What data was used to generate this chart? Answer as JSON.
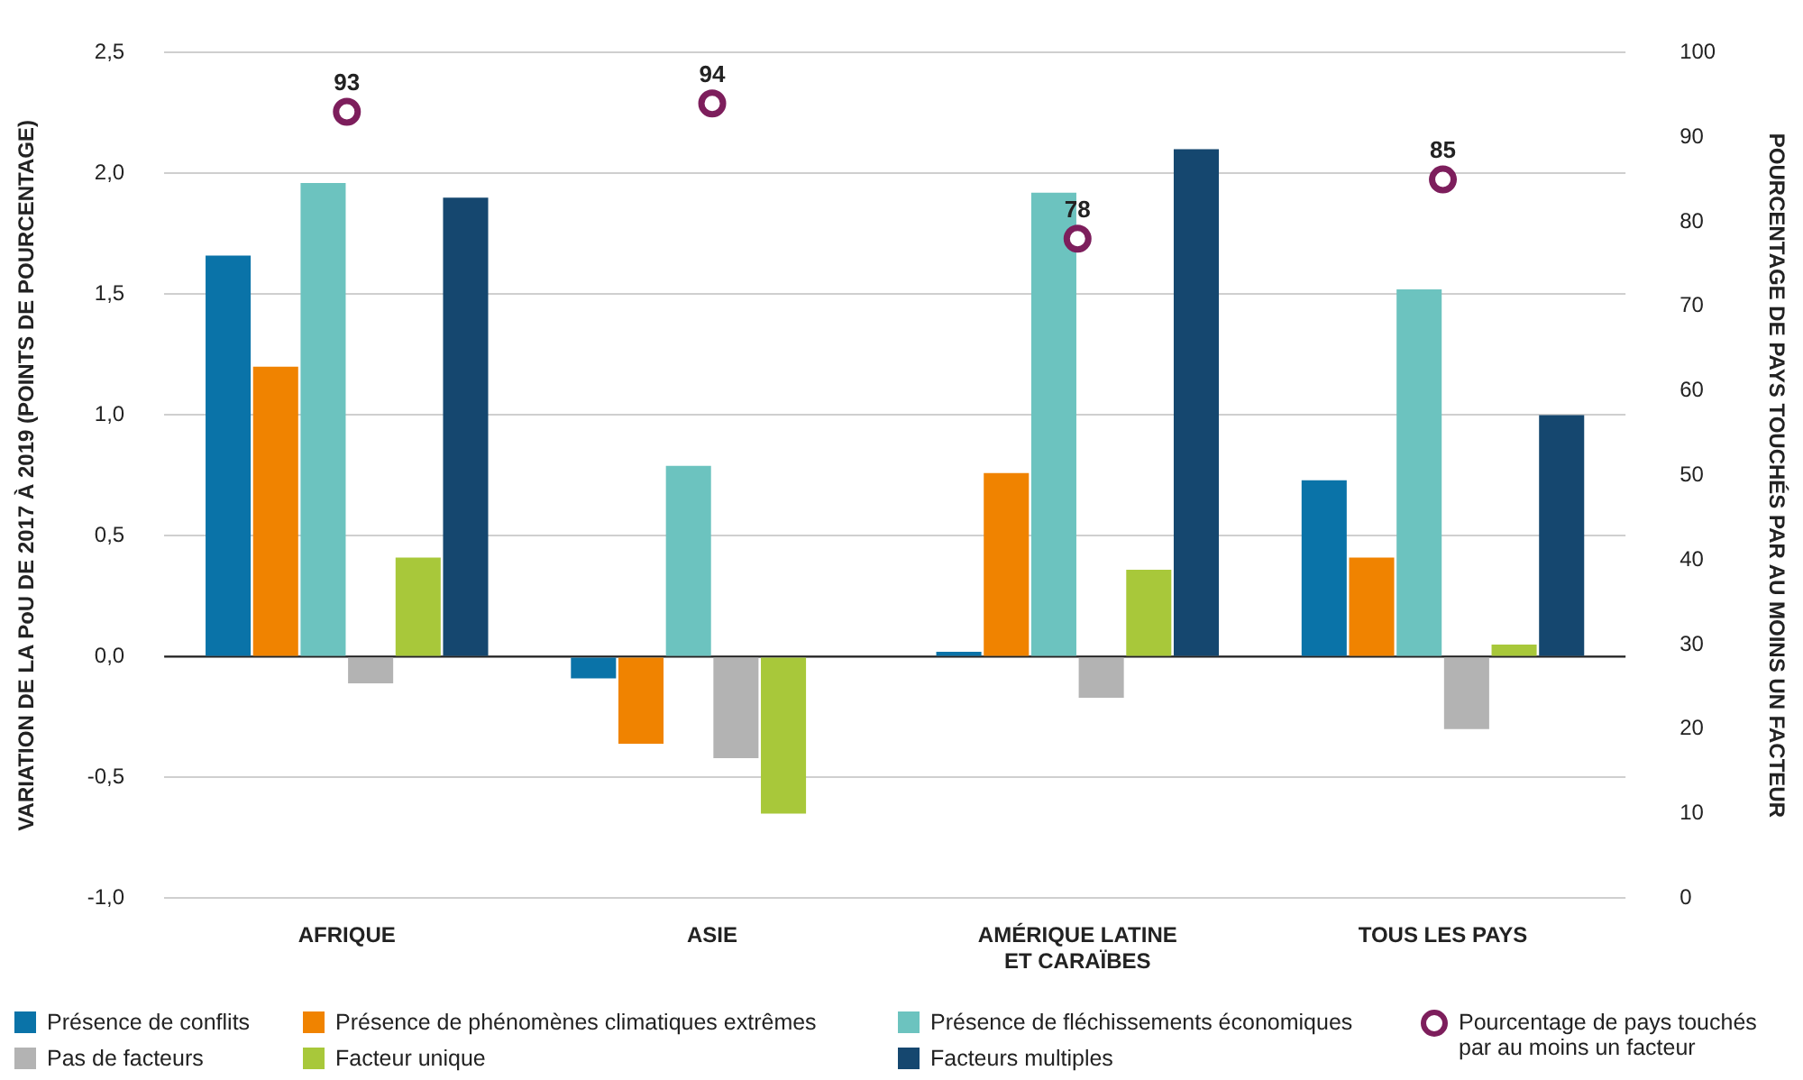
{
  "chart_data": {
    "type": "bar",
    "categories": [
      "AFRIQUE",
      "ASIE",
      "AMÉRIQUE LATINE\nET CARAÏBES",
      "TOUS LES PAYS"
    ],
    "ylabel": "VARIATION DE LA PoU DE 2017 À 2019 (POINTS DE POURCENTAGE)",
    "y2label": "POURCENTAGE DE PAYS TOUCHÉS PAR AU MOINS UN FACTEUR",
    "ylim": [
      -1,
      2.5
    ],
    "yticks": [
      {
        "value": -1,
        "label": "-1,0"
      },
      {
        "value": -0.5,
        "label": "-0,5"
      },
      {
        "value": 0,
        "label": "0,0"
      },
      {
        "value": 0.5,
        "label": "0,5"
      },
      {
        "value": 1,
        "label": "1,0"
      },
      {
        "value": 1.5,
        "label": "1,5"
      },
      {
        "value": 2,
        "label": "2,0"
      },
      {
        "value": 2.5,
        "label": "2,5"
      }
    ],
    "y2lim": [
      0,
      100
    ],
    "y2ticks": [
      0,
      10,
      20,
      30,
      40,
      50,
      60,
      70,
      80,
      90,
      100
    ],
    "grid": "y",
    "legend": "bottom",
    "ref_lines": [
      {
        "axis": "y",
        "value": 0,
        "color": "#222222"
      }
    ],
    "series": [
      {
        "name": "Présence de conflits",
        "color": "#0a73a8",
        "values": [
          1.66,
          -0.09,
          0.02,
          0.73
        ]
      },
      {
        "name": "Présence de phénomènes climatiques extrêmes",
        "color": "#f08300",
        "values": [
          1.2,
          -0.36,
          0.76,
          0.41
        ]
      },
      {
        "name": "Présence de fléchissements économiques",
        "color": "#6cc3bf",
        "values": [
          1.96,
          0.79,
          1.92,
          1.52
        ]
      },
      {
        "name": "Pas de facteurs",
        "color": "#b3b3b3",
        "values": [
          -0.11,
          -0.42,
          -0.17,
          -0.3
        ]
      },
      {
        "name": "Facteur unique",
        "color": "#a8c83a",
        "values": [
          0.41,
          -0.65,
          0.36,
          0.05
        ]
      },
      {
        "name": "Facteurs multiples",
        "color": "#15476f",
        "values": [
          1.9,
          0,
          2.1,
          1
        ]
      },
      {
        "name": "Pourcentage de pays touchés\npar au moins un facteur",
        "type": "scatter",
        "axis": "y2",
        "marker": "circle",
        "color": "#7d1e5c",
        "x": [
          "AFRIQUE",
          "ASIE",
          "AMÉRIQUE LATINE\nET CARAÏBES",
          "TOUS LES PAYS"
        ],
        "values": [
          93,
          94,
          78,
          85
        ],
        "value_labels": [
          "93",
          "94",
          "78",
          "85"
        ]
      }
    ]
  }
}
